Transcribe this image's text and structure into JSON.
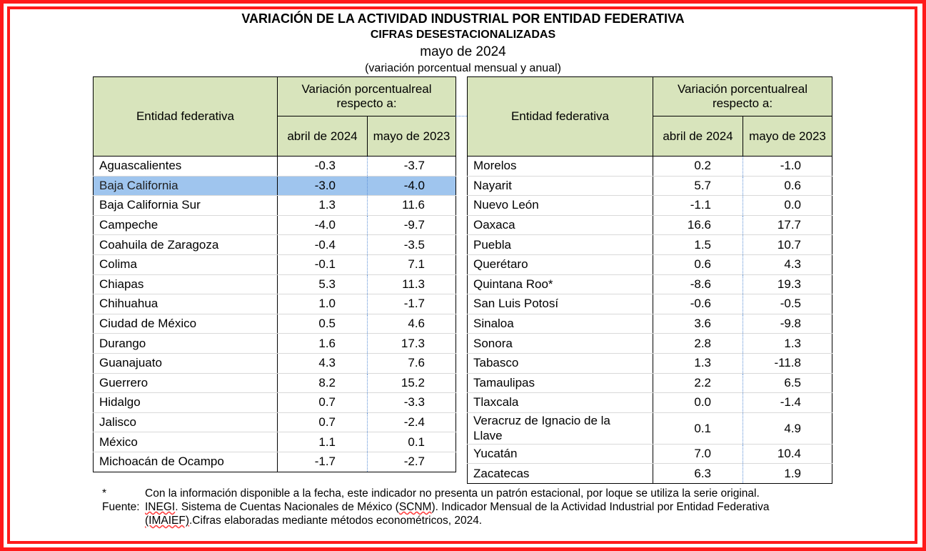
{
  "titles": {
    "main": "VARIACIÓN DE LA ACTIVIDAD INDUSTRIAL POR ENTIDAD FEDERATIVA",
    "sub": "CIFRAS DESESTACIONALIZADAS",
    "period": "mayo de 2024",
    "units": "(variación porcentual mensual y anual)"
  },
  "headers": {
    "entity": "Entidad federativa",
    "group": "Variación porcentualreal respecto a:",
    "col1": "abril de 2024",
    "col2": "mayo de 2023"
  },
  "left_rows": [
    {
      "entity": "Aguascalientes",
      "abr": "-0.3",
      "may": "-3.7"
    },
    {
      "entity": "Baja California",
      "abr": "-3.0",
      "may": "-4.0"
    },
    {
      "entity": "Baja California Sur",
      "abr": "1.3",
      "may": "11.6"
    },
    {
      "entity": "Campeche",
      "abr": "-4.0",
      "may": "-9.7"
    },
    {
      "entity": "Coahuila de Zaragoza",
      "abr": "-0.4",
      "may": "-3.5"
    },
    {
      "entity": "Colima",
      "abr": "-0.1",
      "may": "7.1"
    },
    {
      "entity": "Chiapas",
      "abr": "5.3",
      "may": "11.3"
    },
    {
      "entity": "Chihuahua",
      "abr": "1.0",
      "may": "-1.7"
    },
    {
      "entity": "Ciudad de México",
      "abr": "0.5",
      "may": "4.6"
    },
    {
      "entity": "Durango",
      "abr": "1.6",
      "may": "17.3"
    },
    {
      "entity": "Guanajuato",
      "abr": "4.3",
      "may": "7.6"
    },
    {
      "entity": "Guerrero",
      "abr": "8.2",
      "may": "15.2"
    },
    {
      "entity": "Hidalgo",
      "abr": "0.7",
      "may": "-3.3"
    },
    {
      "entity": "Jalisco",
      "abr": "0.7",
      "may": "-2.4"
    },
    {
      "entity": "México",
      "abr": "1.1",
      "may": "0.1"
    },
    {
      "entity": "Michoacán de Ocampo",
      "abr": "-1.7",
      "may": "-2.7"
    }
  ],
  "right_rows": [
    {
      "entity": "Morelos",
      "abr": "0.2",
      "may": "-1.0"
    },
    {
      "entity": "Nayarit",
      "abr": "5.7",
      "may": "0.6"
    },
    {
      "entity": "Nuevo León",
      "abr": "-1.1",
      "may": "0.0"
    },
    {
      "entity": "Oaxaca",
      "abr": "16.6",
      "may": "17.7"
    },
    {
      "entity": "Puebla",
      "abr": "1.5",
      "may": "10.7"
    },
    {
      "entity": "Querétaro",
      "abr": "0.6",
      "may": "4.3"
    },
    {
      "entity": "Quintana Roo*",
      "abr": "-8.6",
      "may": "19.3"
    },
    {
      "entity": "San Luis Potosí",
      "abr": "-0.6",
      "may": "-0.5"
    },
    {
      "entity": "Sinaloa",
      "abr": "3.6",
      "may": "-9.8"
    },
    {
      "entity": "Sonora",
      "abr": "2.8",
      "may": "1.3"
    },
    {
      "entity": "Tabasco",
      "abr": "1.3",
      "may": "-11.8"
    },
    {
      "entity": "Tamaulipas",
      "abr": "2.2",
      "may": "6.5"
    },
    {
      "entity": "Tlaxcala",
      "abr": "0.0",
      "may": "-1.4"
    },
    {
      "entity": "Veracruz de Ignacio de la Llave",
      "abr": "0.1",
      "may": "4.9"
    },
    {
      "entity": "Yucatán",
      "abr": "7.0",
      "may": "10.4"
    },
    {
      "entity": "Zacatecas",
      "abr": "6.3",
      "may": "1.9"
    }
  ],
  "notes": {
    "asterisk": "*",
    "asterisk_text": "Con la información disponible a la fecha, este indicador no presenta un patrón estacional, por loque se utiliza la serie original.",
    "source_label": "Fuente:",
    "source_org": "INEGI",
    "source_text_1": ". Sistema de Cuentas Nacionales de México (",
    "source_abbr_1": "SCNM",
    "source_text_2": "). Indicador Mensual de la Actividad Industrial por Entidad Federativa",
    "source_abbr_2": "(IMAIEF)",
    "source_text_3": ".Cifras elaboradas mediante métodos econométricos, 2024."
  },
  "selection": {
    "side": "left",
    "row": 1
  },
  "colors": {
    "frame": "#ff1a1a",
    "header_bg": "#d8e4bc",
    "selection": "#9fc5ee",
    "dotted_divider": "#5b8fd6"
  }
}
